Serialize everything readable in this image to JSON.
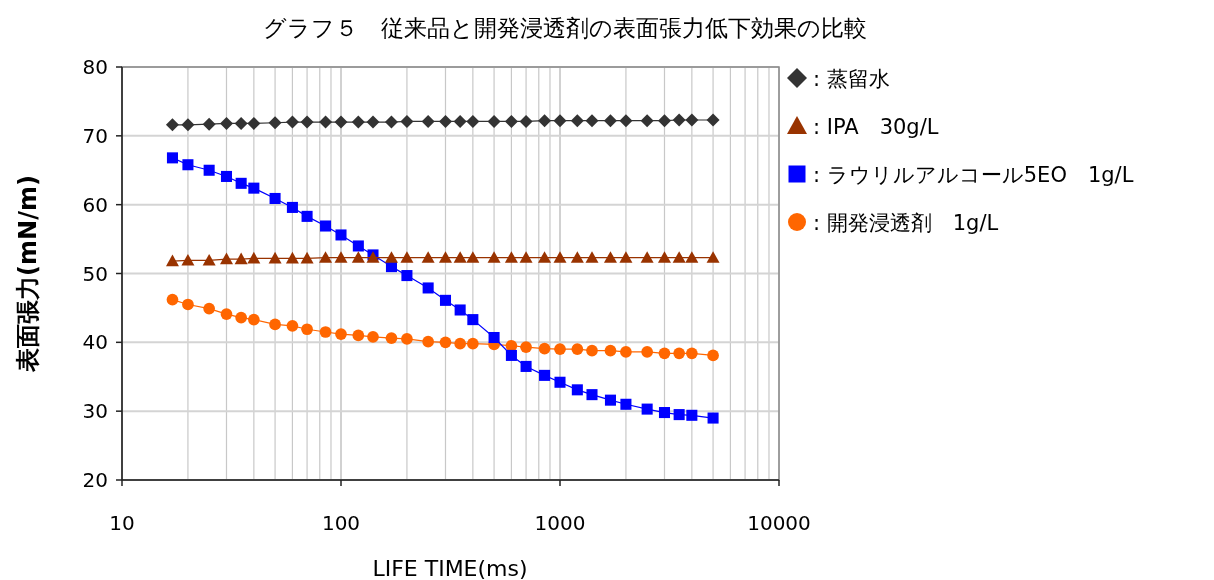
{
  "chart_data": {
    "type": "line",
    "title": "グラフ５　従来品と開発浸透剤の表面張力低下効果の比較",
    "xlabel": "LIFE TIME(ms)",
    "ylabel": "表面張力(mN/m)",
    "x": [
      17,
      20,
      25,
      30,
      35,
      40,
      50,
      60,
      70,
      85,
      100,
      120,
      140,
      170,
      200,
      250,
      300,
      350,
      400,
      500,
      600,
      700,
      850,
      1000,
      1200,
      1400,
      1700,
      2000,
      2500,
      3000,
      3500,
      4000,
      5000
    ],
    "log": "x",
    "xlim": [
      10,
      10000
    ],
    "xticks": [
      10,
      100,
      1000,
      10000
    ],
    "ylim": [
      20,
      80
    ],
    "yticks": [
      20,
      30,
      40,
      50,
      60,
      70,
      80
    ],
    "grid": true,
    "legend": "right",
    "line_style": "solid",
    "series": [
      {
        "name": ": 蒸留水",
        "color": "#333333",
        "marker": "diamond",
        "values": [
          71.6,
          71.6,
          71.7,
          71.8,
          71.8,
          71.8,
          71.9,
          72.0,
          72.0,
          72.0,
          72.0,
          72.0,
          72.0,
          72.0,
          72.1,
          72.1,
          72.1,
          72.1,
          72.1,
          72.1,
          72.1,
          72.1,
          72.2,
          72.2,
          72.2,
          72.2,
          72.2,
          72.2,
          72.2,
          72.2,
          72.3,
          72.3,
          72.3
        ]
      },
      {
        "name": ": IPA　30g/L",
        "color": "#993300",
        "marker": "triangle",
        "values": [
          51.8,
          51.9,
          51.9,
          52.1,
          52.1,
          52.2,
          52.2,
          52.2,
          52.2,
          52.3,
          52.3,
          52.3,
          52.3,
          52.3,
          52.3,
          52.3,
          52.3,
          52.3,
          52.3,
          52.3,
          52.3,
          52.3,
          52.3,
          52.3,
          52.3,
          52.3,
          52.3,
          52.3,
          52.3,
          52.3,
          52.3,
          52.3,
          52.3
        ]
      },
      {
        "name": ": ラウリルアルコール5EO　1g/L",
        "color": "#0000ff",
        "marker": "square",
        "values": [
          66.8,
          65.8,
          65.0,
          64.1,
          63.1,
          62.4,
          60.9,
          59.6,
          58.3,
          56.9,
          55.6,
          54.0,
          52.7,
          51.0,
          49.7,
          47.9,
          46.1,
          44.7,
          43.3,
          40.7,
          38.1,
          36.5,
          35.2,
          34.2,
          33.1,
          32.4,
          31.6,
          31.0,
          30.3,
          29.8,
          29.5,
          29.4,
          29.0
        ]
      },
      {
        "name": ": 開発浸透剤　1g/L",
        "color": "#ff6600",
        "marker": "circle",
        "values": [
          46.2,
          45.5,
          44.9,
          44.1,
          43.6,
          43.3,
          42.6,
          42.4,
          41.9,
          41.5,
          41.2,
          41.0,
          40.8,
          40.6,
          40.5,
          40.1,
          40.0,
          39.8,
          39.8,
          39.7,
          39.5,
          39.3,
          39.1,
          39.0,
          39.0,
          38.8,
          38.8,
          38.6,
          38.6,
          38.4,
          38.4,
          38.4,
          38.1
        ]
      }
    ]
  }
}
